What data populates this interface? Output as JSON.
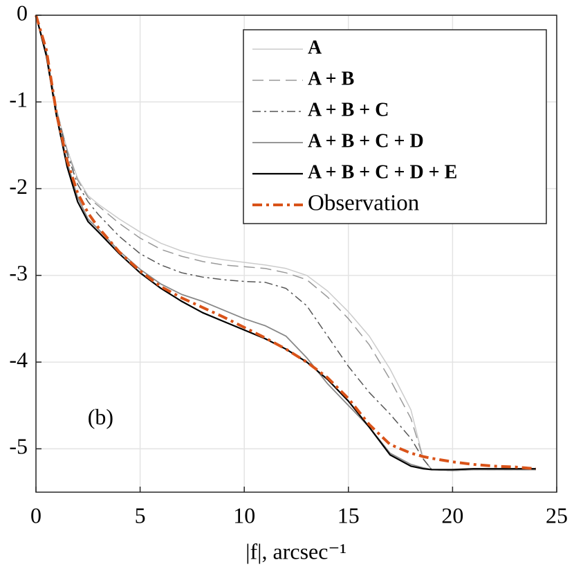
{
  "chart_data": {
    "type": "line",
    "xlabel": "|f|, arcsec⁻¹",
    "annotation": {
      "text": "(b)",
      "x": 3.1,
      "y": -4.66
    },
    "xlim": [
      0,
      25
    ],
    "xticks": [
      0,
      5,
      10,
      15,
      20,
      25
    ],
    "ylim": [
      -5.5,
      0
    ],
    "yticks": [
      0,
      -1,
      -2,
      -3,
      -4,
      -5
    ],
    "grid": true,
    "legend": "upper right",
    "x": [
      0,
      0.5,
      1,
      1.5,
      2,
      2.5,
      3,
      4,
      5,
      6,
      7,
      8,
      9,
      10,
      11,
      12,
      13,
      14,
      15,
      16,
      17,
      18,
      18.6,
      19,
      20,
      21,
      22,
      23,
      24
    ],
    "series": [
      {
        "name": "A",
        "color": "#cccccc",
        "dash": "solid",
        "width": 1.5,
        "label_weight": "bold",
        "values": [
          0,
          -0.42,
          -1.1,
          -1.55,
          -1.88,
          -2.08,
          -2.18,
          -2.35,
          -2.5,
          -2.63,
          -2.72,
          -2.78,
          -2.82,
          -2.85,
          -2.88,
          -2.92,
          -3.0,
          -3.18,
          -3.42,
          -3.7,
          -4.08,
          -4.55,
          -5.12,
          -5.24,
          -5.25,
          -5.24,
          -5.24,
          -5.24,
          -5.24
        ]
      },
      {
        "name": "A + B",
        "color": "#999999",
        "dash": "dashed",
        "width": 1.5,
        "label_weight": "bold",
        "values": [
          0,
          -0.42,
          -1.1,
          -1.56,
          -1.9,
          -2.1,
          -2.2,
          -2.4,
          -2.57,
          -2.7,
          -2.78,
          -2.84,
          -2.88,
          -2.9,
          -2.92,
          -2.97,
          -3.05,
          -3.25,
          -3.5,
          -3.8,
          -4.2,
          -4.65,
          -5.12,
          -5.24,
          -5.25,
          -5.24,
          -5.24,
          -5.24,
          -5.24
        ]
      },
      {
        "name": "A + B + C",
        "color": "#555555",
        "dash": "dashdot",
        "width": 1.5,
        "label_weight": "bold",
        "values": [
          0,
          -0.43,
          -1.12,
          -1.6,
          -1.95,
          -2.15,
          -2.3,
          -2.55,
          -2.75,
          -2.88,
          -2.97,
          -3.02,
          -3.05,
          -3.07,
          -3.08,
          -3.15,
          -3.35,
          -3.7,
          -4.05,
          -4.35,
          -4.6,
          -4.88,
          -5.12,
          -5.24,
          -5.25,
          -5.24,
          -5.24,
          -5.24,
          -5.24
        ]
      },
      {
        "name": "A + B + C + D",
        "color": "#888888",
        "dash": "solid",
        "width": 1.8,
        "label_weight": "bold",
        "values": [
          0,
          -0.45,
          -1.15,
          -1.7,
          -2.1,
          -2.35,
          -2.47,
          -2.72,
          -2.93,
          -3.1,
          -3.22,
          -3.3,
          -3.4,
          -3.5,
          -3.58,
          -3.7,
          -3.95,
          -4.25,
          -4.5,
          -4.75,
          -5.05,
          -5.18,
          -5.22,
          -5.24,
          -5.25,
          -5.24,
          -5.24,
          -5.24,
          -5.24
        ]
      },
      {
        "name": "A + B + C + D + E",
        "color": "#000000",
        "dash": "solid",
        "width": 2.2,
        "label_weight": "bold",
        "values": [
          0,
          -0.47,
          -1.18,
          -1.75,
          -2.15,
          -2.38,
          -2.5,
          -2.75,
          -2.97,
          -3.15,
          -3.3,
          -3.43,
          -3.53,
          -3.63,
          -3.73,
          -3.85,
          -4.0,
          -4.2,
          -4.45,
          -4.75,
          -5.07,
          -5.2,
          -5.23,
          -5.24,
          -5.24,
          -5.23,
          -5.23,
          -5.23,
          -5.23
        ]
      },
      {
        "name": "Observation",
        "color": "#d95319",
        "dash": "dashdot",
        "width": 4,
        "label_weight": "normal",
        "values": [
          0,
          -0.4,
          -1.15,
          -1.68,
          -2.05,
          -2.28,
          -2.45,
          -2.73,
          -2.95,
          -3.13,
          -3.26,
          -3.37,
          -3.48,
          -3.6,
          -3.72,
          -3.85,
          -4.0,
          -4.18,
          -4.42,
          -4.72,
          -4.95,
          -5.05,
          -5.09,
          -5.11,
          -5.15,
          -5.18,
          -5.2,
          -5.21,
          -5.23
        ]
      }
    ]
  }
}
